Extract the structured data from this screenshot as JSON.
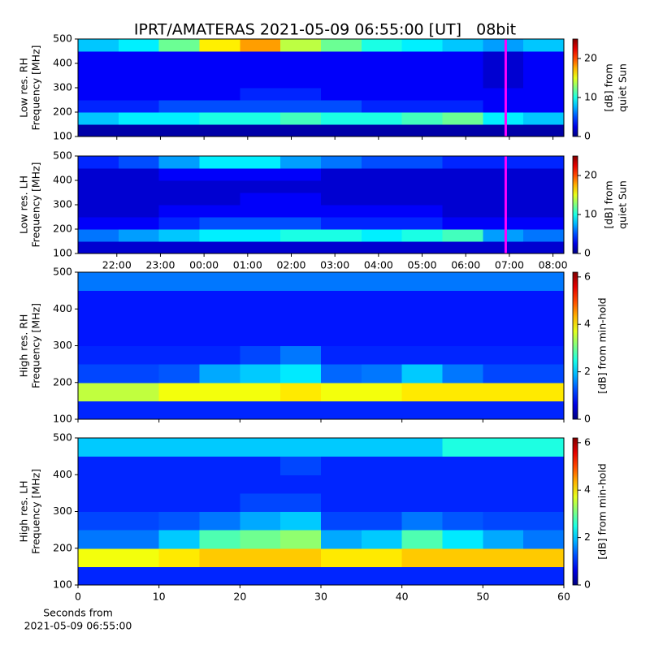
{
  "title": "IPRT/AMATERAS 2021-05-09 06:55:00 [UT]   08bit",
  "chart_data": [
    {
      "type": "heatmap",
      "ylabel": [
        "Low res. RH",
        "Frequency [MHz]"
      ],
      "colorbar_label": [
        "[dB] from",
        "quiet Sun"
      ],
      "colormap": "jet",
      "zlim": [
        0,
        25
      ],
      "zticks": [
        0,
        10,
        20
      ],
      "xlim": [
        21.11,
        32.25
      ],
      "xticks": [
        {
          "value": 22,
          "label": "22:00"
        },
        {
          "value": 23,
          "label": "23:00"
        },
        {
          "value": 24,
          "label": "00:00"
        },
        {
          "value": 25,
          "label": "01:00"
        },
        {
          "value": 26,
          "label": "02:00"
        },
        {
          "value": 27,
          "label": "03:00"
        },
        {
          "value": 28,
          "label": "04:00"
        },
        {
          "value": 29,
          "label": "05:00"
        },
        {
          "value": 30,
          "label": "06:00"
        },
        {
          "value": 31,
          "label": "07:00"
        },
        {
          "value": 32,
          "label": "08:00"
        }
      ],
      "show_xtick_labels": false,
      "marker_x": 30.917,
      "marker_color": "#ff00ff",
      "ylim": [
        100,
        500
      ],
      "yticks": [
        100,
        200,
        300,
        400,
        500
      ],
      "z": [
        [
          1,
          1,
          1,
          1,
          1,
          1,
          1,
          1,
          1,
          1,
          1,
          1
        ],
        [
          8,
          9,
          9,
          10,
          10,
          11,
          10,
          10,
          11,
          12,
          9,
          8
        ],
        [
          4,
          4,
          5,
          5,
          5,
          5,
          5,
          4,
          4,
          4,
          3,
          3
        ],
        [
          3,
          3,
          3,
          3,
          4,
          4,
          3,
          3,
          3,
          3,
          3,
          3
        ],
        [
          3,
          3,
          3,
          3,
          3,
          3,
          3,
          3,
          3,
          3,
          2,
          3
        ],
        [
          3,
          3,
          3,
          3,
          3,
          3,
          3,
          3,
          3,
          3,
          2,
          3
        ],
        [
          3,
          3,
          3,
          3,
          3,
          3,
          3,
          3,
          3,
          3,
          2,
          3
        ],
        [
          8,
          9,
          12,
          16,
          18,
          14,
          12,
          10,
          9,
          8,
          7,
          8
        ]
      ]
    },
    {
      "type": "heatmap",
      "ylabel": [
        "Low res. LH",
        "Frequency [MHz]"
      ],
      "colorbar_label": [
        "[dB] from",
        "quiet Sun"
      ],
      "colormap": "jet",
      "zlim": [
        0,
        25
      ],
      "zticks": [
        0,
        10,
        20
      ],
      "xlim": [
        21.11,
        32.25
      ],
      "xticks": [
        {
          "value": 22,
          "label": "22:00"
        },
        {
          "value": 23,
          "label": "23:00"
        },
        {
          "value": 24,
          "label": "00:00"
        },
        {
          "value": 25,
          "label": "01:00"
        },
        {
          "value": 26,
          "label": "02:00"
        },
        {
          "value": 27,
          "label": "03:00"
        },
        {
          "value": 28,
          "label": "04:00"
        },
        {
          "value": 29,
          "label": "05:00"
        },
        {
          "value": 30,
          "label": "06:00"
        },
        {
          "value": 31,
          "label": "07:00"
        },
        {
          "value": 32,
          "label": "08:00"
        }
      ],
      "show_xtick_labels": true,
      "marker_x": 30.917,
      "marker_color": "#ff00ff",
      "ylim": [
        100,
        500
      ],
      "yticks": [
        100,
        200,
        300,
        400,
        500
      ],
      "z": [
        [
          2,
          2,
          2,
          2,
          2,
          2,
          2,
          2,
          2,
          2,
          2,
          2
        ],
        [
          6,
          7,
          8,
          9,
          9,
          10,
          10,
          9,
          10,
          11,
          7,
          6
        ],
        [
          3,
          3,
          4,
          5,
          5,
          5,
          4,
          4,
          4,
          3,
          3,
          3
        ],
        [
          2,
          2,
          3,
          3,
          3,
          3,
          3,
          3,
          3,
          2,
          2,
          2
        ],
        [
          2,
          2,
          2,
          2,
          3,
          3,
          2,
          2,
          2,
          2,
          2,
          2
        ],
        [
          2,
          2,
          2,
          2,
          2,
          2,
          2,
          2,
          2,
          2,
          2,
          2
        ],
        [
          2,
          2,
          3,
          3,
          3,
          3,
          2,
          2,
          2,
          2,
          2,
          2
        ],
        [
          4,
          5,
          7,
          9,
          9,
          7,
          6,
          5,
          5,
          4,
          4,
          4
        ]
      ]
    },
    {
      "type": "heatmap",
      "ylabel": [
        "High res. RH",
        "Frequency [MHz]"
      ],
      "colorbar_label": [
        "[dB] from min-hold"
      ],
      "colormap": "jet",
      "zlim": [
        0,
        6.2
      ],
      "zticks": [
        0,
        2,
        4,
        6
      ],
      "xlim": [
        0,
        60
      ],
      "xticks": [
        0,
        10,
        20,
        30,
        40,
        50,
        60
      ],
      "show_xtick_labels": false,
      "ylim": [
        100,
        500
      ],
      "yticks": [
        100,
        200,
        300,
        400,
        500
      ],
      "z": [
        [
          1,
          1,
          1,
          1,
          1,
          1,
          1,
          1,
          1,
          1,
          1,
          1
        ],
        [
          3.5,
          3.5,
          3.8,
          3.8,
          3.8,
          4,
          3.8,
          3.8,
          4,
          4,
          4,
          4
        ],
        [
          1.2,
          1.2,
          1.3,
          1.8,
          2,
          2.2,
          1.4,
          1.5,
          2,
          1.5,
          1.2,
          1.2
        ],
        [
          1,
          1,
          1,
          1,
          1.2,
          1.5,
          1,
          1,
          1,
          1,
          1,
          1
        ],
        [
          0.9,
          0.9,
          0.9,
          0.9,
          0.9,
          0.9,
          0.9,
          0.9,
          0.9,
          0.9,
          0.9,
          0.9
        ],
        [
          0.9,
          0.9,
          0.9,
          0.9,
          0.9,
          0.9,
          0.9,
          0.9,
          0.9,
          0.9,
          0.9,
          0.9
        ],
        [
          0.9,
          0.9,
          0.9,
          0.9,
          0.9,
          0.9,
          0.9,
          0.9,
          0.9,
          0.9,
          0.9,
          0.9
        ],
        [
          1.5,
          1.5,
          1.5,
          1.5,
          1.5,
          1.5,
          1.5,
          1.5,
          1.5,
          1.5,
          1.5,
          1.5
        ]
      ]
    },
    {
      "type": "heatmap",
      "ylabel": [
        "High res. LH",
        "Frequency [MHz]"
      ],
      "colorbar_label": [
        "[dB] from min-hold"
      ],
      "colormap": "jet",
      "zlim": [
        0,
        6.2
      ],
      "zticks": [
        0,
        2,
        4,
        6
      ],
      "xlim": [
        0,
        60
      ],
      "xticks": [
        0,
        10,
        20,
        30,
        40,
        50,
        60
      ],
      "show_xtick_labels": true,
      "xlabel": [
        "Seconds from",
        "2021-05-09 06:55:00"
      ],
      "ylim": [
        100,
        500
      ],
      "yticks": [
        100,
        200,
        300,
        400,
        500
      ],
      "z": [
        [
          1,
          1,
          1,
          1,
          1,
          1,
          1,
          1,
          1,
          1,
          1,
          1
        ],
        [
          3.8,
          3.8,
          4,
          4.2,
          4.2,
          4.2,
          4,
          4,
          4.2,
          4.2,
          4.2,
          4.2
        ],
        [
          1.5,
          1.5,
          2,
          2.8,
          3,
          3.2,
          1.8,
          2,
          2.8,
          2.2,
          1.8,
          1.5
        ],
        [
          1.2,
          1.2,
          1.3,
          1.5,
          1.8,
          2,
          1.2,
          1.2,
          1.5,
          1.3,
          1.2,
          1.2
        ],
        [
          1,
          1,
          1,
          1,
          1.2,
          1.2,
          1,
          1,
          1,
          1,
          1,
          1
        ],
        [
          1,
          1,
          1,
          1,
          1,
          1,
          1,
          1,
          1,
          1,
          1,
          1
        ],
        [
          1,
          1,
          1,
          1,
          1,
          1.2,
          1,
          1,
          1,
          1,
          1,
          1
        ],
        [
          2,
          2,
          2,
          2,
          2,
          2,
          2,
          2,
          2,
          2.5,
          2.5,
          2.5
        ]
      ]
    }
  ]
}
